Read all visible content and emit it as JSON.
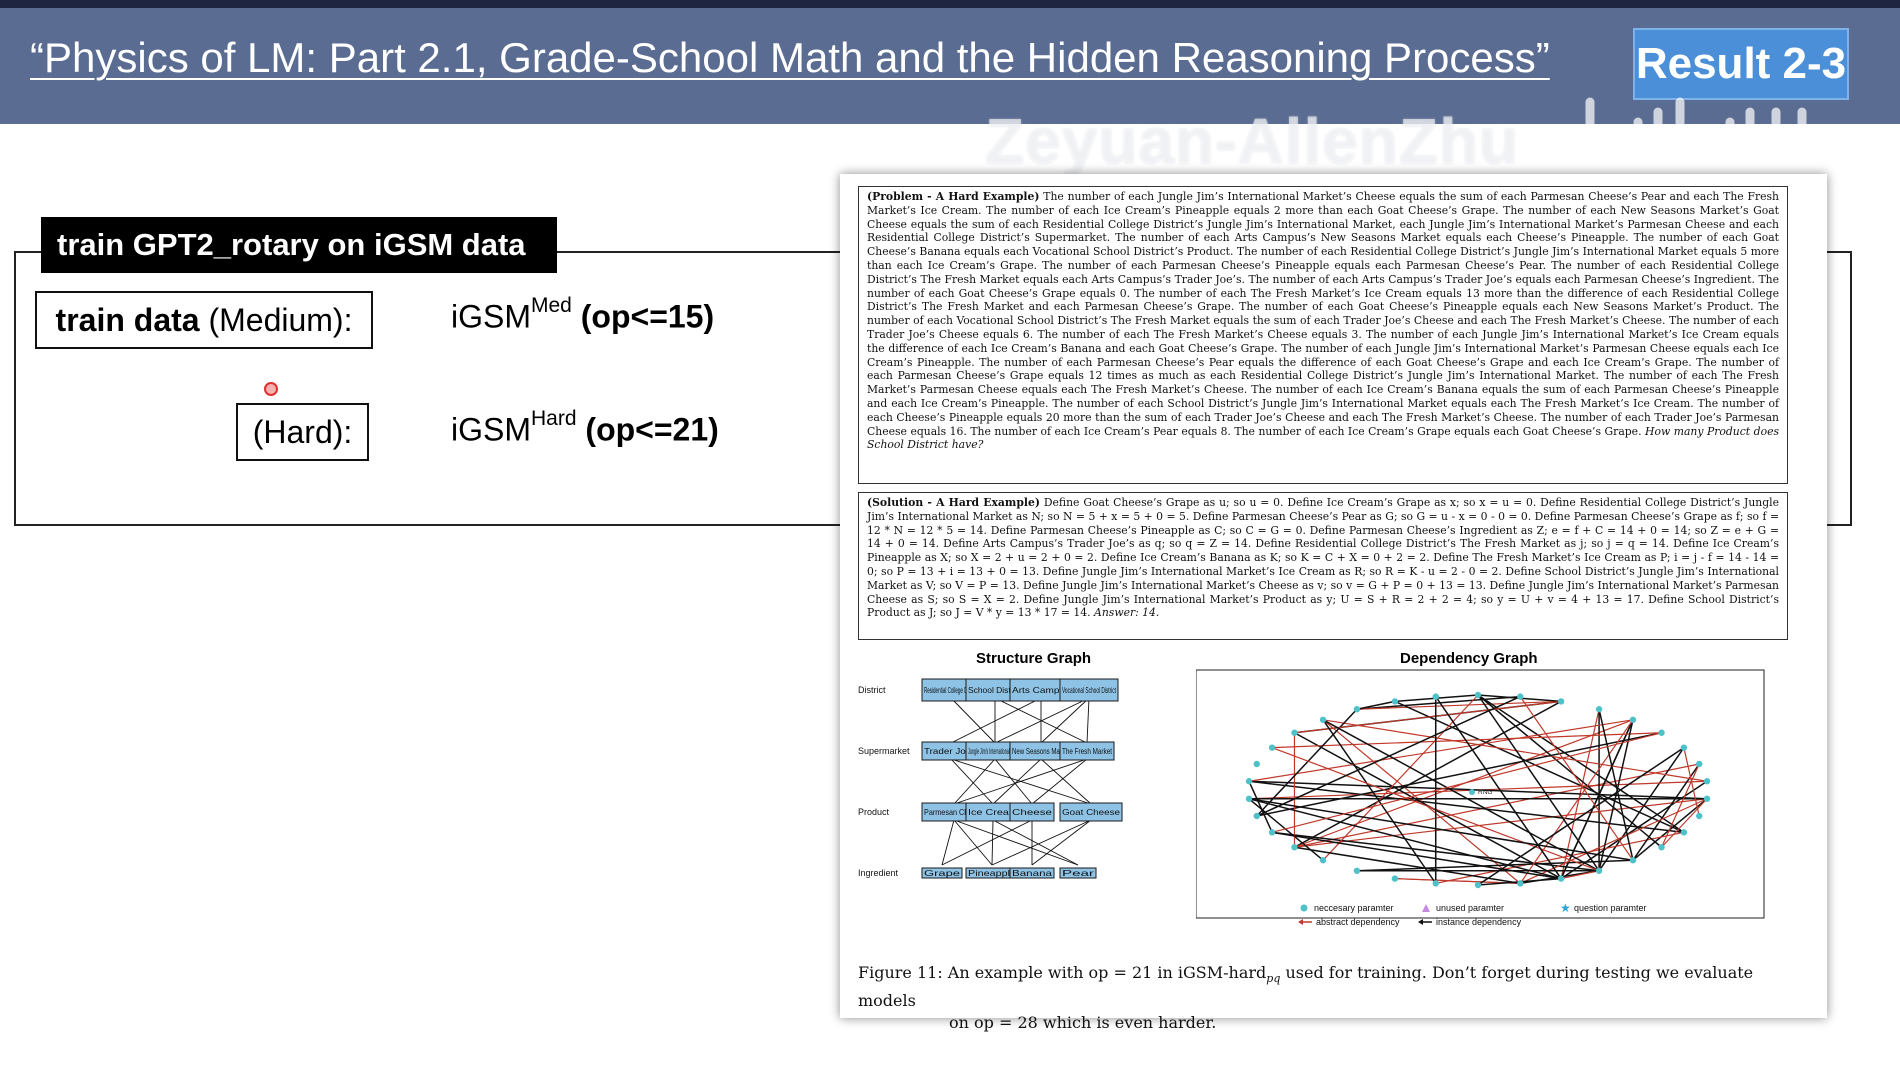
{
  "header": {
    "title": "“Physics of LM: Part 2.1, Grade-School Math and the Hidden Reasoning Process”",
    "badge": "Result 2-3",
    "watermark": "Zeyuan-AllenZhu"
  },
  "left_panel": {
    "tag": "train GPT2_rotary on iGSM data",
    "row1": {
      "label_bold": "train data",
      "label_rest": " (Medium):",
      "dataset": "iGSM",
      "sup": "Med",
      "op": "(op<=15)"
    },
    "row2": {
      "label": "(Hard):",
      "dataset": "iGSM",
      "sup": "Hard",
      "op": "(op<=21)"
    }
  },
  "paper": {
    "problem_head": "(Problem - A Hard Example)",
    "problem_text": "The number of each Jungle Jim’s International Market’s Cheese equals the sum of each Parmesan Cheese’s Pear and each The Fresh Market’s Ice Cream. The number of each Ice Cream’s Pineapple equals 2 more than each Goat Cheese’s Grape. The number of each New Seasons Market’s Goat Cheese equals the sum of each Residential College District’s Jungle Jim’s International Market, each Jungle Jim’s International Market’s Parmesan Cheese and each Residential College District’s Supermarket. The number of each Arts Campus’s New Seasons Market equals each Cheese’s Pineapple. The number of each Goat Cheese’s Banana equals each Vocational School District’s Product. The number of each Residential College District’s Jungle Jim’s International Market equals 5 more than each Ice Cream’s Grape. The number of each Parmesan Cheese’s Pineapple equals each Parmesan Cheese’s Pear. The number of each Residential College District’s The Fresh Market equals each Arts Campus’s Trader Joe’s. The number of each Arts Campus’s Trader Joe’s equals each Parmesan Cheese’s Ingredient. The number of each Goat Cheese’s Grape equals 0. The number of each The Fresh Market’s Ice Cream equals 13 more than the difference of each Residential College District’s The Fresh Market and each Parmesan Cheese’s Grape. The number of each Goat Cheese’s Pineapple equals each New Seasons Market’s Product. The number of each Vocational School District’s The Fresh Market equals the sum of each Trader Joe’s Cheese and each The Fresh Market’s Cheese. The number of each Trader Joe’s Cheese equals 6. The number of each The Fresh Market’s Cheese equals 3. The number of each Jungle Jim’s International Market’s Ice Cream equals the difference of each Ice Cream’s Banana and each Goat Cheese’s Grape. The number of each Jungle Jim’s International Market’s Parmesan Cheese equals each Ice Cream’s Pineapple. The number of each Parmesan Cheese’s Pear equals the difference of each Goat Cheese’s Grape and each Ice Cream’s Grape. The number of each Parmesan Cheese’s Grape equals 12 times as much as each Residential College District’s Jungle Jim’s International Market. The number of each The Fresh Market’s Parmesan Cheese equals each The Fresh Market’s Cheese. The number of each Ice Cream’s Banana equals the sum of each Parmesan Cheese’s Pineapple and each Ice Cream’s Pineapple. The number of each School District’s Jungle Jim’s International Market equals each The Fresh Market’s Ice Cream. The number of each Cheese’s Pineapple equals 20 more than the sum of each Trader Joe’s Cheese and each The Fresh Market’s Cheese. The number of each Trader Joe’s Parmesan Cheese equals 16. The number of each Ice Cream’s Pear equals 8. The number of each Ice Cream’s Grape equals each Goat Cheese’s Grape.",
    "problem_question": "How many Product does School District have?",
    "solution_head": "(Solution - A Hard Example)",
    "solution_text": "Define Goat Cheese’s Grape as u; so u = 0. Define Ice Cream’s Grape as x; so x = u = 0. Define Residential College District’s Jungle Jim’s International Market as N; so N = 5 + x = 5 + 0 = 5. Define Parmesan Cheese’s Pear as G; so G = u - x = 0 - 0 = 0. Define Parmesan Cheese’s Grape as f; so f = 12 * N = 12 * 5 = 14. Define Parmesan Cheese’s Pineapple as C; so C = G = 0. Define Parmesan Cheese’s Ingredient as Z; e = f + C = 14 + 0 = 14; so Z = e + G = 14 + 0 = 14. Define Arts Campus’s Trader Joe’s as q; so q = Z = 14. Define Residential College District’s The Fresh Market as j; so j = q = 14. Define Ice Cream’s Pineapple as X; so X = 2 + u = 2 + 0 = 2. Define Ice Cream’s Banana as K; so K = C + X = 0 + 2 = 2. Define The Fresh Market’s Ice Cream as P; i = j - f = 14 - 14 = 0; so P = 13 + i = 13 + 0 = 13. Define Jungle Jim’s International Market’s Ice Cream as R; so R = K - u = 2 - 0 = 2. Define School District’s Jungle Jim’s International Market as V; so V = P = 13. Define Jungle Jim’s International Market’s Cheese as v; so v = G + P = 0 + 13 = 13. Define Jungle Jim’s International Market’s Parmesan Cheese as S; so S = X = 2. Define Jungle Jim’s International Market’s Product as y; U = S + R = 2 + 2 = 4; so y = U + v = 4 + 13 = 17. Define School District’s Product as J; so J = V * y = 13 * 17 = 14.",
    "solution_answer": "Answer: 14.",
    "structure_graph": {
      "title": "Structure Graph",
      "rows": [
        "District",
        "Supermarket",
        "Product",
        "Ingredient"
      ],
      "district": [
        "Residential College District",
        "School District",
        "Arts Campus",
        "Vocational School District"
      ],
      "supermarket": [
        "Trader Joe's",
        "Jungle Jim's International Market",
        "New Seasons Market",
        "The Fresh Market"
      ],
      "product": [
        "Parmesan Cheese",
        "Ice Cream",
        "Cheese",
        "Goat Cheese"
      ],
      "ingredient": [
        "Grape",
        "Pineapple",
        "Banana",
        "Pear"
      ]
    },
    "dependency_graph": {
      "title": "Dependency Graph",
      "center_label": "RNG",
      "legend": [
        "neccesary paramter",
        "unused paramter",
        "question paramter",
        "abstract dependency",
        "instance dependency"
      ]
    },
    "caption_line1": "Figure 11: An example with op = 21 in iGSM-hard",
    "caption_sub": "pq",
    "caption_line1_rest": " used for training. Don’t forget during testing we evaluate models",
    "caption_line2": "on op = 28 which is even harder."
  }
}
